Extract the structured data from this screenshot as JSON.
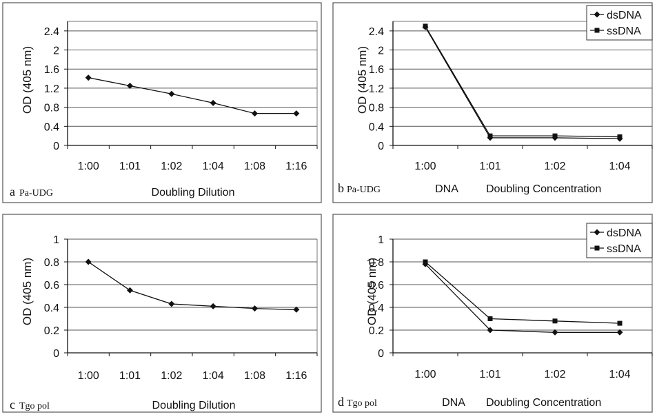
{
  "chart_data": [
    {
      "type": "line",
      "panel_letter": "a",
      "panel_protein": "Pa-UDG",
      "xlabel": "Doubling Dilution",
      "ylabel": "OD (405 nm)",
      "categories": [
        "1:00",
        "1:01",
        "1:02",
        "1:04",
        "1:08",
        "1:16"
      ],
      "ylim": [
        0,
        2.6
      ],
      "yticks": [
        "0",
        "0.4",
        "0.8",
        "1.2",
        "1.6",
        "2",
        "2.4"
      ],
      "yticks_values": [
        0,
        0.4,
        0.8,
        1.2,
        1.6,
        2.0,
        2.4
      ],
      "grid": true,
      "series": [
        {
          "values": [
            1.42,
            1.25,
            1.08,
            0.89,
            0.67,
            0.67
          ],
          "marker": "diamond",
          "color": "#111111"
        }
      ]
    },
    {
      "type": "line",
      "panel_letter": "b",
      "panel_protein": "Pa-UDG",
      "xlabel_parts": [
        "DNA",
        "Doubling Concentration"
      ],
      "ylabel": "OD (405 nm)",
      "categories": [
        "1:00",
        "1:01",
        "1:02",
        "1:04"
      ],
      "ylim": [
        0,
        2.6
      ],
      "yticks": [
        "0",
        "0.4",
        "0.8",
        "1.2",
        "1.6",
        "2",
        "2.4"
      ],
      "yticks_values": [
        0,
        0.4,
        0.8,
        1.2,
        1.6,
        2.0,
        2.4
      ],
      "grid": true,
      "legend_position": "top-right",
      "series": [
        {
          "name": "dsDNA",
          "values": [
            2.48,
            0.16,
            0.16,
            0.14
          ],
          "marker": "diamond",
          "color": "#111111"
        },
        {
          "name": "ssDNA",
          "values": [
            2.5,
            0.2,
            0.2,
            0.18
          ],
          "marker": "square",
          "color": "#111111"
        }
      ]
    },
    {
      "type": "line",
      "panel_letter": "c",
      "panel_protein": "Tgo pol",
      "xlabel": "Doubling Dilution",
      "ylabel": "OD (405 nm)",
      "categories": [
        "1:00",
        "1:01",
        "1:02",
        "1:04",
        "1:08",
        "1:16"
      ],
      "ylim": [
        0,
        1
      ],
      "yticks": [
        "0",
        "0.2",
        "0.4",
        "0.6",
        "0.8",
        "1"
      ],
      "yticks_values": [
        0,
        0.2,
        0.4,
        0.6,
        0.8,
        1.0
      ],
      "grid": true,
      "series": [
        {
          "values": [
            0.8,
            0.55,
            0.43,
            0.41,
            0.39,
            0.38
          ],
          "marker": "diamond",
          "color": "#111111"
        }
      ]
    },
    {
      "type": "line",
      "panel_letter": "d",
      "panel_protein": "Tgo pol",
      "xlabel_parts": [
        "DNA",
        "Doubling Concentration"
      ],
      "ylabel": "OD (405 nm)",
      "categories": [
        "1:00",
        "1:01",
        "1:02",
        "1:04"
      ],
      "ylim": [
        0,
        1
      ],
      "yticks": [
        "0",
        "0.2",
        "0.4",
        "0.6",
        "0.8",
        "1"
      ],
      "yticks_values": [
        0,
        0.2,
        0.4,
        0.6,
        0.8,
        1.0
      ],
      "grid": true,
      "legend_position": "top-right",
      "series": [
        {
          "name": "dsDNA",
          "values": [
            0.78,
            0.2,
            0.18,
            0.18
          ],
          "marker": "diamond",
          "color": "#111111"
        },
        {
          "name": "ssDNA",
          "values": [
            0.8,
            0.3,
            0.28,
            0.26
          ],
          "marker": "square",
          "color": "#111111"
        }
      ]
    }
  ]
}
